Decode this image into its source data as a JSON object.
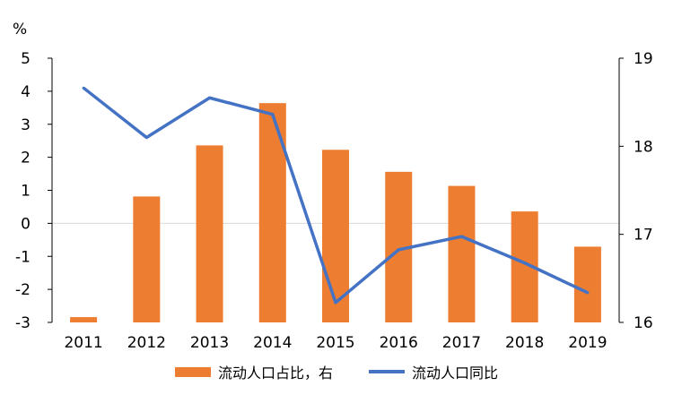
{
  "chart_data": {
    "type": "bar+line",
    "categories": [
      "2011",
      "2012",
      "2013",
      "2014",
      "2015",
      "2016",
      "2017",
      "2018",
      "2019"
    ],
    "left_axis": {
      "unit_label": "%",
      "min": -3,
      "max": 5,
      "ticks": [
        5,
        4,
        3,
        2,
        1,
        0,
        -1,
        -2,
        -3
      ]
    },
    "right_axis": {
      "min": 16,
      "max": 19,
      "ticks": [
        19,
        18,
        17,
        16
      ]
    },
    "series": [
      {
        "name": "流动人口占比，右",
        "kind": "bar",
        "axis": "right",
        "color": "#ED7D31",
        "values": [
          16.06,
          17.43,
          18.01,
          18.49,
          17.96,
          17.71,
          17.55,
          17.26,
          16.86
        ]
      },
      {
        "name": "流动人口同比",
        "kind": "line",
        "axis": "left",
        "color": "#4472C4",
        "values": [
          4.1,
          2.6,
          3.8,
          3.3,
          -2.4,
          -0.8,
          -0.4,
          -1.2,
          -2.1
        ]
      }
    ],
    "legend_position": "bottom",
    "grid": false
  }
}
